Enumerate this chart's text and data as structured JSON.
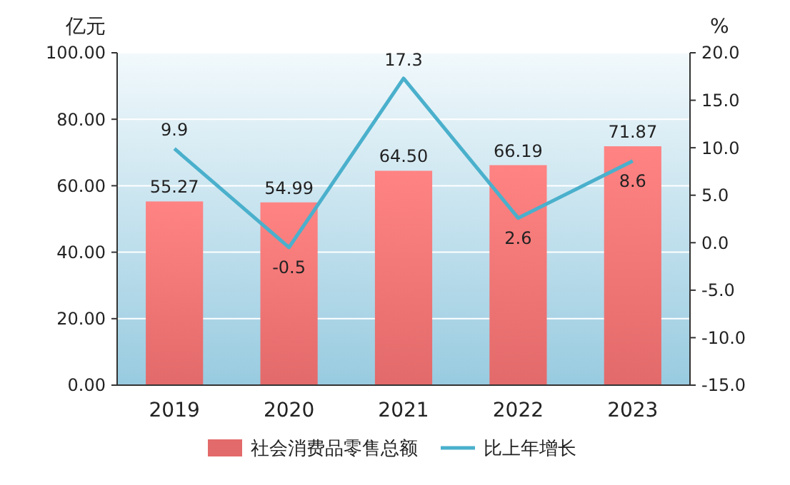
{
  "chart_data": {
    "type": "bar",
    "ylabel": "亿元",
    "y2label": "%",
    "categories": [
      "2019",
      "2020",
      "2021",
      "2022",
      "2023"
    ],
    "series": [
      {
        "name": "社会消费品零售总额",
        "color": "#e36a6a",
        "values": [
          55.27,
          54.99,
          64.5,
          66.19,
          71.87
        ],
        "value_labels": [
          "55.27",
          "54.99",
          "64.50",
          "66.19",
          "71.87"
        ]
      },
      {
        "name": "比上年增长",
        "type": "line",
        "axis": "y2",
        "color": "#4ab0cc",
        "values": [
          9.9,
          -0.5,
          17.3,
          2.6,
          8.6
        ],
        "value_labels": [
          "9.9",
          "-0.5",
          "17.3",
          "2.6",
          "8.6"
        ]
      }
    ],
    "ylim": [
      0,
      100
    ],
    "yticks": [
      {
        "value": 0,
        "label": "0.00"
      },
      {
        "value": 20,
        "label": "20.00"
      },
      {
        "value": 40,
        "label": "40.00"
      },
      {
        "value": 60,
        "label": "60.00"
      },
      {
        "value": 80,
        "label": "80.00"
      },
      {
        "value": 100,
        "label": "100.00"
      }
    ],
    "y2lim": [
      -15,
      20
    ],
    "y2ticks": [
      {
        "value": -15,
        "label": "-15.0"
      },
      {
        "value": -10,
        "label": "-10.0"
      },
      {
        "value": -5,
        "label": "-5.0"
      },
      {
        "value": 0,
        "label": "0.0"
      },
      {
        "value": 5,
        "label": "5.0"
      },
      {
        "value": 10,
        "label": "10.0"
      },
      {
        "value": 15,
        "label": "15.0"
      },
      {
        "value": 20,
        "label": "20.0"
      }
    ],
    "grid": "y",
    "legend": "bottom",
    "marker": "none",
    "line_style": "solid"
  }
}
